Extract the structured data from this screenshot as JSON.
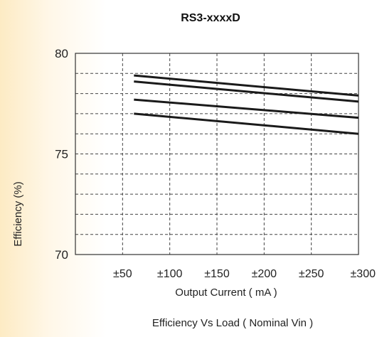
{
  "chart_data": {
    "type": "line",
    "title": "RS3-xxxxD",
    "xlabel": "Output Current ( mA )",
    "ylabel": "Efficiency (%)",
    "caption": "Efficiency  Vs Load ( Nominal Vin )",
    "xlim": [
      0,
      300
    ],
    "ylim": [
      70,
      80
    ],
    "xticks": [
      {
        "value": 50,
        "label": "±50"
      },
      {
        "value": 100,
        "label": "±100"
      },
      {
        "value": 150,
        "label": "±150"
      },
      {
        "value": 200,
        "label": "±200"
      },
      {
        "value": 250,
        "label": "±250"
      },
      {
        "value": 300,
        "label": "±300"
      }
    ],
    "yticks": [
      {
        "value": 80,
        "label": "80"
      },
      {
        "value": 75,
        "label": "75"
      },
      {
        "value": 70,
        "label": "70"
      }
    ],
    "grid": true,
    "series": [
      {
        "x": [
          62,
          300
        ],
        "y": [
          78.9,
          77.9
        ]
      },
      {
        "x": [
          62,
          300
        ],
        "y": [
          78.6,
          77.6
        ]
      },
      {
        "x": [
          62,
          300
        ],
        "y": [
          77.7,
          76.8
        ]
      },
      {
        "x": [
          62,
          300
        ],
        "y": [
          77.0,
          76.0
        ]
      }
    ]
  }
}
